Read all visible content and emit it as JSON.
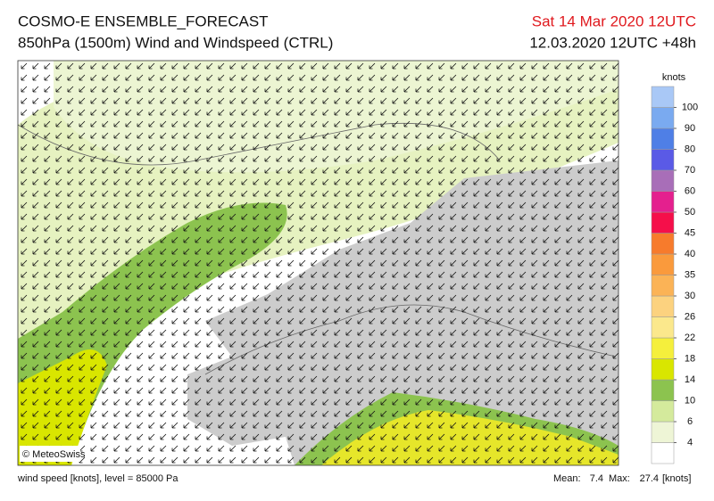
{
  "header": {
    "title": "COSMO-E ENSEMBLE_FORECAST",
    "subtitle": "850hPa (1500m) Wind and Windspeed (CTRL)",
    "valid_time": "Sat 14 Mar 2020 12UTC",
    "run": "12.03.2020 12UTC +48h"
  },
  "legend": {
    "unit": "knots",
    "ticks": [
      4,
      6,
      10,
      14,
      18,
      22,
      26,
      30,
      35,
      40,
      45,
      50,
      60,
      70,
      80,
      90,
      100
    ],
    "colors": [
      "#ffffff",
      "#eef5d6",
      "#d4ea9c",
      "#8cc34f",
      "#d9e600",
      "#f5ef3c",
      "#fbe88c",
      "#fcd27f",
      "#fbb356",
      "#fa9a3c",
      "#f77b2c",
      "#f50f4a",
      "#e4208e",
      "#a86eb8",
      "#5a5ae6",
      "#4f7fe6",
      "#7aaaf0",
      "#a9c8f6"
    ]
  },
  "map": {
    "copyright": "© MeteoSwiss"
  },
  "footer": {
    "description": "wind speed [knots], level = 85000 Pa",
    "mean_label": "Mean:",
    "mean": 7.4,
    "max_label": "Max:",
    "max": 27.4,
    "unit": "[knots]"
  }
}
